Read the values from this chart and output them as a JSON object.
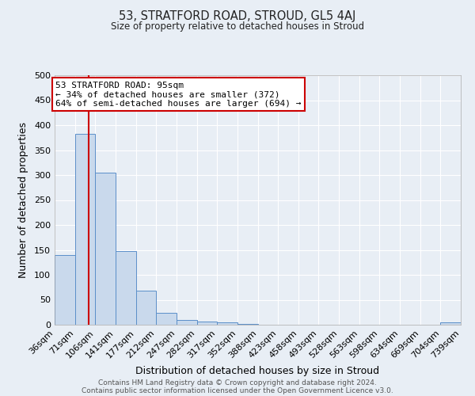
{
  "title1": "53, STRATFORD ROAD, STROUD, GL5 4AJ",
  "title2": "Size of property relative to detached houses in Stroud",
  "xlabel": "Distribution of detached houses by size in Stroud",
  "ylabel": "Number of detached properties",
  "footer1": "Contains HM Land Registry data © Crown copyright and database right 2024.",
  "footer2": "Contains public sector information licensed under the Open Government Licence v3.0.",
  "bin_edges": [
    36,
    71,
    106,
    141,
    177,
    212,
    247,
    282,
    317,
    352,
    388,
    423,
    458,
    493,
    528,
    563,
    598,
    634,
    669,
    704,
    739
  ],
  "bar_heights": [
    140,
    383,
    305,
    147,
    69,
    24,
    10,
    6,
    5,
    2,
    0,
    0,
    0,
    0,
    0,
    0,
    0,
    0,
    0,
    4
  ],
  "bar_color": "#c9d9ec",
  "bar_edgecolor": "#5b8fc9",
  "vline_x": 95,
  "vline_color": "#cc0000",
  "annotation_title": "53 STRATFORD ROAD: 95sqm",
  "annotation_line1": "← 34% of detached houses are smaller (372)",
  "annotation_line2": "64% of semi-detached houses are larger (694) →",
  "annotation_box_edgecolor": "#cc0000",
  "annotation_box_facecolor": "#ffffff",
  "xlim_left": 36,
  "xlim_right": 739,
  "ylim_top": 500,
  "bg_color": "#e8eef5",
  "plot_bg_color": "#e8eef5",
  "grid_color": "#ffffff",
  "yticks": [
    0,
    50,
    100,
    150,
    200,
    250,
    300,
    350,
    400,
    450,
    500
  ]
}
